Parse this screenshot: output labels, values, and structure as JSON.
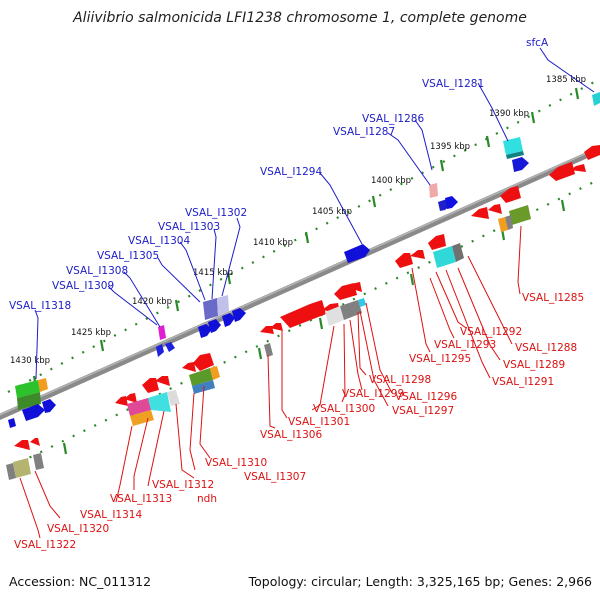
{
  "title": "Aliivibrio salmonicida LFI1238 chromosome 1, complete genome",
  "footer": {
    "accession": "Accession: NC_011312",
    "summary": "Topology: circular; Length: 3,325,165 bp; Genes: 2,966"
  },
  "colors": {
    "backbone": "#888888",
    "ticks": "#2a8a2a",
    "forward_strand_label": "#1c1cc8",
    "reverse_strand_label": "#dd1111",
    "forward_gene": "#0a0ad8",
    "reverse_gene": "#ee1010"
  },
  "scale_ticks": [
    "1385 kbp",
    "1390 kbp",
    "1395 kbp",
    "1400 kbp",
    "1405 kbp",
    "1410 kbp",
    "1415 kbp",
    "1420 kbp",
    "1425 kbp",
    "1430 kbp"
  ],
  "labels_forward": [
    "sfcA",
    "VSAL_I1281",
    "VSAL_I1286",
    "VSAL_I1287",
    "VSAL_I1294",
    "VSAL_I1302",
    "VSAL_I1303",
    "VSAL_I1304",
    "VSAL_I1305",
    "VSAL_I1308",
    "VSAL_I1309",
    "VSAL_I1318"
  ],
  "labels_reverse": [
    "VSAL_I1285",
    "VSAL_I1288",
    "VSAL_I1289",
    "VSAL_I1291",
    "VSAL_I1292",
    "VSAL_I1293",
    "VSAL_I1295",
    "VSAL_I1296",
    "VSAL_I1297",
    "VSAL_I1298",
    "VSAL_I1299",
    "VSAL_I1300",
    "VSAL_I1301",
    "VSAL_I1306",
    "VSAL_I1307",
    "VSAL_I1310",
    "VSAL_I1312",
    "ndh",
    "VSAL_I1313",
    "VSAL_I1314",
    "VSAL_I1320",
    "VSAL_I1322"
  ]
}
